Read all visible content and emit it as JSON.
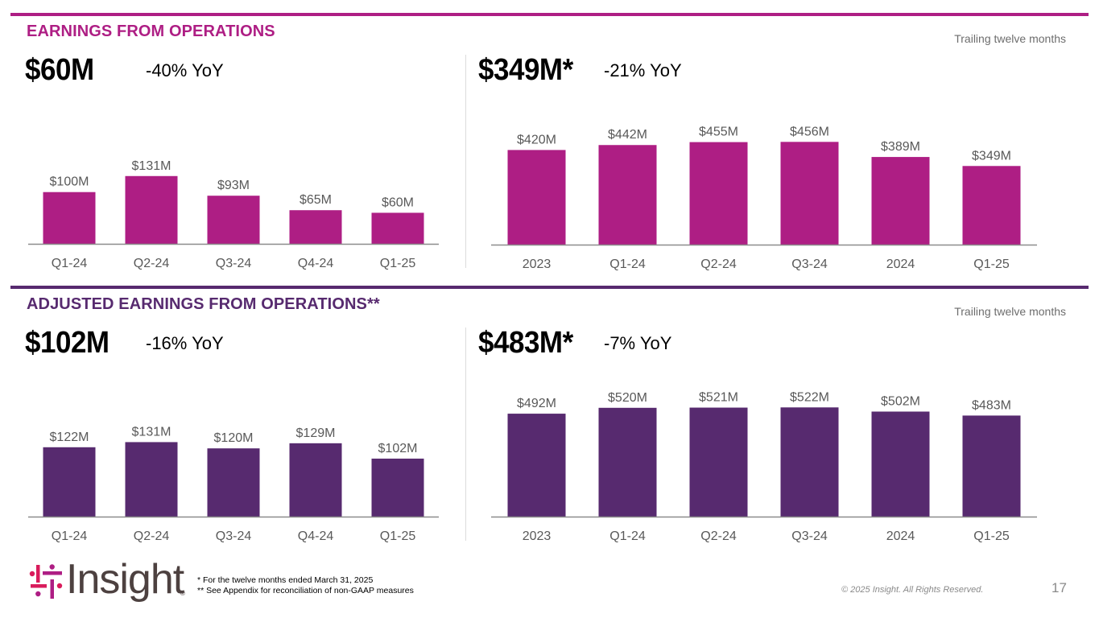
{
  "colors": {
    "magenta": "#ae1e84",
    "purple": "#572a6f",
    "label_gray": "#595959",
    "muted_gray": "#8a8a8a"
  },
  "sections": {
    "top": {
      "title": "EARNINGS FROM OPERATIONS",
      "ttm_note": "Trailing twelve months",
      "quarter_headline": "$60M",
      "quarter_yoy": "-40% YoY",
      "ttm_headline": "$349M*",
      "ttm_yoy": "-21% YoY"
    },
    "bottom": {
      "title": "ADJUSTED EARNINGS FROM OPERATIONS**",
      "ttm_note": "Trailing twelve months",
      "quarter_headline": "$102M",
      "quarter_yoy": "-16% YoY",
      "ttm_headline": "$483M*",
      "ttm_yoy": "-7% YoY"
    }
  },
  "footer": {
    "brand": "Insight",
    "registered": "®",
    "footnote_1": "* For the twelve months ended March 31, 2025",
    "footnote_2": "** See Appendix for reconciliation of non-GAAP measures",
    "copyright": "© 2025 Insight. All Rights Reserved.",
    "page_number": "17"
  },
  "chart_data": [
    {
      "id": "eo-quarterly",
      "type": "bar",
      "title": "Earnings from Operations (quarterly)",
      "categories": [
        "Q1-24",
        "Q2-24",
        "Q3-24",
        "Q4-24",
        "Q1-25"
      ],
      "values": [
        100,
        131,
        93,
        65,
        60
      ],
      "labels": [
        "$100M",
        "$131M",
        "$93M",
        "$65M",
        "$60M"
      ],
      "unit": "$M",
      "color": "#ae1e84",
      "grid": false,
      "ylim": [
        0,
        140
      ]
    },
    {
      "id": "eo-ttm",
      "type": "bar",
      "title": "Earnings from Operations (trailing twelve months)",
      "categories": [
        "2023",
        "Q1-24",
        "Q2-24",
        "Q3-24",
        "2024",
        "Q1-25"
      ],
      "values": [
        420,
        442,
        455,
        456,
        389,
        349
      ],
      "labels": [
        "$420M",
        "$442M",
        "$455M",
        "$456M",
        "$389M",
        "$349M"
      ],
      "unit": "$M",
      "color": "#ae1e84",
      "grid": false,
      "ylim": [
        0,
        500
      ]
    },
    {
      "id": "aeo-quarterly",
      "type": "bar",
      "title": "Adjusted Earnings from Operations (quarterly)",
      "categories": [
        "Q1-24",
        "Q2-24",
        "Q3-24",
        "Q4-24",
        "Q1-25"
      ],
      "values": [
        122,
        131,
        120,
        129,
        102
      ],
      "labels": [
        "$122M",
        "$131M",
        "$120M",
        "$129M",
        "$102M"
      ],
      "unit": "$M",
      "color": "#572a6f",
      "grid": false,
      "ylim": [
        0,
        150
      ]
    },
    {
      "id": "aeo-ttm",
      "type": "bar",
      "title": "Adjusted Earnings from Operations (trailing twelve months)",
      "categories": [
        "2023",
        "Q1-24",
        "Q2-24",
        "Q3-24",
        "2024",
        "Q1-25"
      ],
      "values": [
        492,
        520,
        521,
        522,
        502,
        483
      ],
      "labels": [
        "$492M",
        "$520M",
        "$521M",
        "$522M",
        "$502M",
        "$483M"
      ],
      "unit": "$M",
      "color": "#572a6f",
      "grid": false,
      "ylim": [
        0,
        600
      ]
    }
  ]
}
